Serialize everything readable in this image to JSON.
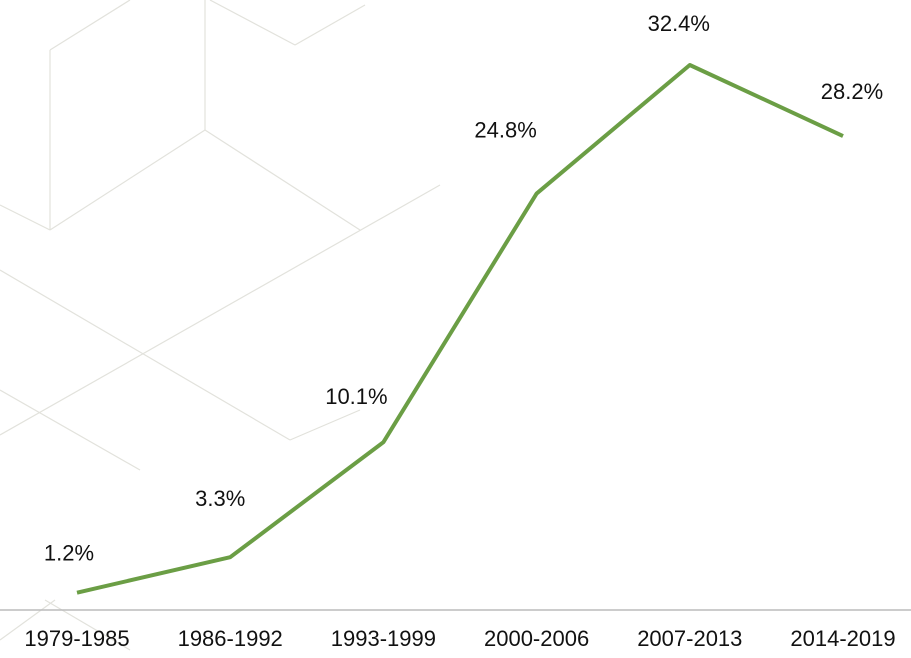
{
  "chart_data": {
    "type": "line",
    "categories": [
      "1979-1985",
      "1986-1992",
      "1993-1999",
      "2000-2006",
      "2007-2013",
      "2014-2019"
    ],
    "values": [
      1.2,
      3.3,
      10.1,
      24.8,
      32.4,
      28.2
    ],
    "value_labels": [
      "1.2%",
      "3.3%",
      "10.1%",
      "24.8%",
      "32.4%",
      "28.2%"
    ],
    "color": "#6b9e45"
  }
}
